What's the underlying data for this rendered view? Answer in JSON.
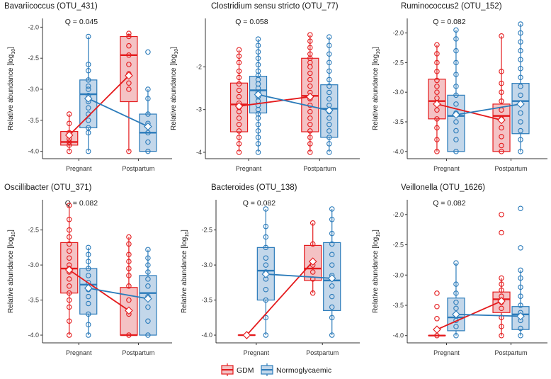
{
  "colors": {
    "gdm": "#e41a1c",
    "gdm_fill": "#f4c2c4",
    "norm": "#2b7bba",
    "norm_fill": "#c3d7ea",
    "axis": "#333333"
  },
  "legend": {
    "gdm": "GDM",
    "norm": "Normoglycaemic"
  },
  "chart_data": [
    {
      "type": "box",
      "title": "Bavariicoccus (OTU_431)",
      "q": "Q = 0.045",
      "ylabel": "Relative abundance [log10]",
      "categories": [
        "Pregnant",
        "Postpartum"
      ],
      "ylim": [
        -4.05,
        -1.95
      ],
      "yticks": [
        -4.0,
        -3.5,
        -3.0,
        -2.5,
        -2.0
      ],
      "ytick_labels": [
        "-4.0",
        "-3.5",
        "-3.0",
        "-2.5",
        "-2.0"
      ],
      "series": [
        {
          "name": "GDM",
          "boxes": [
            {
              "q1": -3.9,
              "med": -3.85,
              "q3": -3.68,
              "lo": -4.0,
              "hi": -3.4,
              "mean": -3.74,
              "pts": [
                -3.4,
                -3.55,
                -3.7,
                -3.8,
                -3.85,
                -3.9,
                -4.0
              ]
            },
            {
              "q1": -3.2,
              "med": -2.45,
              "q3": -2.15,
              "lo": -4.0,
              "hi": -2.1,
              "mean": -2.78,
              "pts": [
                -2.1,
                -2.15,
                -2.3,
                -2.45,
                -2.6,
                -2.75,
                -2.9,
                -3.0,
                -4.0
              ]
            }
          ]
        },
        {
          "name": "Normoglycaemic",
          "boxes": [
            {
              "q1": -3.62,
              "med": -3.08,
              "q3": -2.85,
              "lo": -4.0,
              "hi": -2.15,
              "mean": -3.15,
              "pts": [
                -2.15,
                -2.6,
                -2.7,
                -2.85,
                -2.95,
                -3.0,
                -3.1,
                -3.2,
                -3.3,
                -3.4,
                -3.5,
                -3.62,
                -3.7,
                -4.0
              ]
            },
            {
              "q1": -4.0,
              "med": -3.7,
              "q3": -3.4,
              "lo": -4.0,
              "hi": -3.0,
              "mean": -3.6,
              "pts": [
                -3.0,
                -3.15,
                -3.4,
                -3.55,
                -3.7,
                -3.85,
                -4.0
              ],
              "outliers": [
                -2.4
              ]
            }
          ]
        }
      ]
    },
    {
      "type": "box",
      "title": "Clostridium sensu stricto (OTU_77)",
      "q": "Q = 0.058",
      "ylabel": "Relative abundance [log10]",
      "categories": [
        "Pregnant",
        "Postpartum"
      ],
      "ylim": [
        -4.05,
        -1.0
      ],
      "yticks": [
        -4,
        -3,
        -2
      ],
      "ytick_labels": [
        "-4",
        "-3",
        "-2"
      ],
      "series": [
        {
          "name": "GDM",
          "boxes": [
            {
              "q1": -3.52,
              "med": -2.88,
              "q3": -2.38,
              "lo": -4.0,
              "hi": -1.6,
              "mean": -2.92,
              "pts": [
                -1.6,
                -1.75,
                -1.9,
                -2.1,
                -2.25,
                -2.4,
                -2.55,
                -2.7,
                -2.85,
                -2.95,
                -3.05,
                -3.2,
                -3.35,
                -3.5,
                -3.65,
                -3.8,
                -4.0
              ]
            },
            {
              "q1": -3.52,
              "med": -2.68,
              "q3": -1.8,
              "lo": -4.0,
              "hi": -1.25,
              "mean": -2.7,
              "pts": [
                -1.25,
                -1.4,
                -1.55,
                -1.7,
                -1.8,
                -1.9,
                -2.0,
                -2.15,
                -2.3,
                -2.45,
                -2.6,
                -2.75,
                -2.9,
                -3.05,
                -3.2,
                -3.35,
                -3.5,
                -3.65,
                -3.8,
                -4.0
              ]
            }
          ]
        },
        {
          "name": "Normoglycaemic",
          "boxes": [
            {
              "q1": -3.08,
              "med": -2.55,
              "q3": -2.22,
              "lo": -4.0,
              "hi": -1.35,
              "mean": -2.65,
              "pts": [
                -1.35,
                -1.5,
                -1.65,
                -1.8,
                -1.95,
                -2.1,
                -2.2,
                -2.3,
                -2.4,
                -2.5,
                -2.6,
                -2.7,
                -2.8,
                -2.9,
                -3.0,
                -3.1,
                -3.2,
                -3.35,
                -3.5,
                -3.65,
                -3.8,
                -4.0
              ]
            },
            {
              "q1": -3.65,
              "med": -2.98,
              "q3": -2.42,
              "lo": -4.0,
              "hi": -1.3,
              "mean": -3.02,
              "pts": [
                -1.3,
                -1.5,
                -1.7,
                -1.9,
                -2.1,
                -2.3,
                -2.45,
                -2.6,
                -2.75,
                -2.9,
                -3.05,
                -3.2,
                -3.35,
                -3.5,
                -3.65,
                -3.8,
                -4.0
              ]
            }
          ]
        }
      ]
    },
    {
      "type": "box",
      "title": "Ruminococcus2 (OTU_152)",
      "q": "Q = 0.082",
      "ylabel": "Relative abundance [log10]",
      "categories": [
        "Pregnant",
        "Postpartum"
      ],
      "ylim": [
        -4.05,
        -1.85
      ],
      "yticks": [
        -4.0,
        -3.5,
        -3.0,
        -2.5,
        -2.0
      ],
      "ytick_labels": [
        "-4.0",
        "-3.5",
        "-3.0",
        "-2.5",
        "-2.0"
      ],
      "series": [
        {
          "name": "GDM",
          "boxes": [
            {
              "q1": -3.45,
              "med": -3.15,
              "q3": -2.78,
              "lo": -4.0,
              "hi": -2.2,
              "mean": -3.2,
              "pts": [
                -2.2,
                -2.35,
                -2.5,
                -2.65,
                -2.8,
                -2.9,
                -3.0,
                -3.1,
                -3.2,
                -3.3,
                -3.45,
                -3.6,
                -3.8,
                -4.0
              ]
            },
            {
              "q1": -4.0,
              "med": -3.4,
              "q3": -3.2,
              "lo": -4.0,
              "hi": -2.05,
              "mean": -3.47,
              "pts": [
                -2.05,
                -2.65,
                -2.85,
                -3.0,
                -3.15,
                -3.3,
                -3.45,
                -3.6,
                -3.75,
                -3.9,
                -4.0
              ]
            }
          ]
        },
        {
          "name": "Normoglycaemic",
          "boxes": [
            {
              "q1": -4.0,
              "med": -3.4,
              "q3": -3.05,
              "lo": -4.0,
              "hi": -1.95,
              "mean": -3.38,
              "pts": [
                -1.95,
                -2.1,
                -2.3,
                -2.5,
                -2.7,
                -2.9,
                -3.05,
                -3.2,
                -3.35,
                -3.5,
                -3.65,
                -3.8,
                -4.0
              ]
            },
            {
              "q1": -3.7,
              "med": -3.15,
              "q3": -2.85,
              "lo": -4.0,
              "hi": -1.85,
              "mean": -3.2,
              "pts": [
                -1.85,
                -2.0,
                -2.15,
                -2.3,
                -2.45,
                -2.6,
                -2.75,
                -2.9,
                -3.05,
                -3.2,
                -3.35,
                -3.5,
                -3.65,
                -3.8,
                -4.0
              ]
            }
          ]
        }
      ]
    },
    {
      "type": "box",
      "title": "Oscillibacter (OTU_371)",
      "q": "Q = 0.082",
      "ylabel": "Relative abundance [log10]",
      "categories": [
        "Pregnant",
        "Postpartum"
      ],
      "ylim": [
        -4.05,
        -2.15
      ],
      "yticks": [
        -4.0,
        -3.5,
        -3.0,
        -2.5
      ],
      "ytick_labels": [
        "-4.0",
        "-3.5",
        "-3.0",
        "-2.5"
      ],
      "series": [
        {
          "name": "GDM",
          "boxes": [
            {
              "q1": -3.4,
              "med": -3.05,
              "q3": -2.68,
              "lo": -4.0,
              "hi": -2.15,
              "mean": -3.07,
              "pts": [
                -2.15,
                -2.35,
                -2.5,
                -2.6,
                -2.7,
                -2.8,
                -2.9,
                -3.0,
                -3.05,
                -3.1,
                -3.2,
                -3.3,
                -3.4,
                -3.5,
                -3.6,
                -3.8,
                -4.0
              ]
            },
            {
              "q1": -4.0,
              "med": -4.0,
              "q3": -3.32,
              "lo": -4.0,
              "hi": -2.6,
              "mean": -3.65,
              "pts": [
                -2.6,
                -2.7,
                -2.85,
                -2.95,
                -3.05,
                -3.15,
                -3.3,
                -3.5,
                -3.7,
                -4.0
              ]
            }
          ]
        },
        {
          "name": "Normoglycaemic",
          "boxes": [
            {
              "q1": -3.7,
              "med": -3.28,
              "q3": -3.05,
              "lo": -4.0,
              "hi": -2.75,
              "mean": -3.33,
              "pts": [
                -2.75,
                -2.85,
                -2.95,
                -3.05,
                -3.15,
                -3.25,
                -3.35,
                -3.45,
                -3.55,
                -3.7,
                -3.85,
                -4.0
              ]
            },
            {
              "q1": -4.0,
              "med": -3.4,
              "q3": -3.15,
              "lo": -4.0,
              "hi": -2.78,
              "mean": -3.48,
              "pts": [
                -2.78,
                -2.9,
                -3.0,
                -3.1,
                -3.2,
                -3.3,
                -3.45,
                -3.6,
                -3.8,
                -4.0
              ]
            }
          ]
        }
      ]
    },
    {
      "type": "box",
      "title": "Bacteroides (OTU_138)",
      "q": "Q = 0.082",
      "ylabel": "Relative abundance [log10]",
      "categories": [
        "Pregnant",
        "Postpartum"
      ],
      "ylim": [
        -4.05,
        -2.15
      ],
      "yticks": [
        -4.0,
        -3.5,
        -3.0,
        -2.5
      ],
      "ytick_labels": [
        "-4.0",
        "-3.5",
        "-3.0",
        "-2.5"
      ],
      "series": [
        {
          "name": "GDM",
          "boxes": [
            {
              "q1": -4.0,
              "med": -4.0,
              "q3": -4.0,
              "lo": -4.0,
              "hi": -4.0,
              "mean": -4.0,
              "pts": [
                -4.0
              ]
            },
            {
              "q1": -3.22,
              "med": -3.05,
              "q3": -2.72,
              "lo": -3.4,
              "hi": -2.4,
              "mean": -2.95,
              "pts": [
                -2.4,
                -2.7,
                -3.0,
                -3.1,
                -3.2,
                -3.4
              ]
            }
          ]
        },
        {
          "name": "Normoglycaemic",
          "boxes": [
            {
              "q1": -3.5,
              "med": -3.08,
              "q3": -2.75,
              "lo": -4.0,
              "hi": -2.2,
              "mean": -3.13,
              "pts": [
                -2.2,
                -2.45,
                -2.6,
                -2.75,
                -2.9,
                -3.0,
                -3.1,
                -3.2,
                -3.35,
                -3.5,
                -3.75,
                -4.0
              ]
            },
            {
              "q1": -3.65,
              "med": -3.22,
              "q3": -2.68,
              "lo": -4.0,
              "hi": -2.2,
              "mean": -3.19,
              "pts": [
                -2.2,
                -2.35,
                -2.55,
                -2.7,
                -2.85,
                -3.0,
                -3.15,
                -3.3,
                -3.45,
                -3.6,
                -3.75,
                -4.0
              ]
            }
          ]
        }
      ]
    },
    {
      "type": "box",
      "title": "Veillonella (OTU_1626)",
      "q": "Q = 0.082",
      "ylabel": "Relative abundance [log10]",
      "categories": [
        "Pregnant",
        "Postpartum"
      ],
      "ylim": [
        -4.05,
        -1.85
      ],
      "yticks": [
        -4.0,
        -3.5,
        -3.0,
        -2.5,
        -2.0
      ],
      "ytick_labels": [
        "-4.0",
        "-3.5",
        "-3.0",
        "-2.5",
        "-2.0"
      ],
      "series": [
        {
          "name": "GDM",
          "boxes": [
            {
              "q1": -4.0,
              "med": -4.0,
              "q3": -4.0,
              "lo": -4.0,
              "hi": -4.0,
              "mean": -3.9,
              "pts": [
                -4.0
              ],
              "outliers": [
                -3.3,
                -3.52,
                -3.72
              ]
            },
            {
              "q1": -3.62,
              "med": -3.4,
              "q3": -3.28,
              "lo": -4.0,
              "hi": -3.05,
              "mean": -3.43,
              "pts": [
                -3.05,
                -3.15,
                -3.25,
                -3.35,
                -3.45,
                -3.55,
                -3.7,
                -3.85,
                -4.0
              ],
              "outliers": [
                -2.0,
                -2.3
              ]
            }
          ]
        },
        {
          "name": "Normoglycaemic",
          "boxes": [
            {
              "q1": -3.92,
              "med": -3.7,
              "q3": -3.38,
              "lo": -4.0,
              "hi": -2.8,
              "mean": -3.65,
              "pts": [
                -2.8,
                -3.15,
                -3.3,
                -3.45,
                -3.55,
                -3.65,
                -3.75,
                -3.85,
                -4.0
              ]
            },
            {
              "q1": -3.9,
              "med": -3.65,
              "q3": -3.52,
              "lo": -4.0,
              "hi": -2.92,
              "mean": -3.68,
              "pts": [
                -2.92,
                -3.05,
                -3.2,
                -3.35,
                -3.5,
                -3.62,
                -3.75,
                -3.88,
                -4.0
              ],
              "outliers": [
                -1.9,
                -2.55
              ]
            }
          ]
        }
      ]
    }
  ]
}
